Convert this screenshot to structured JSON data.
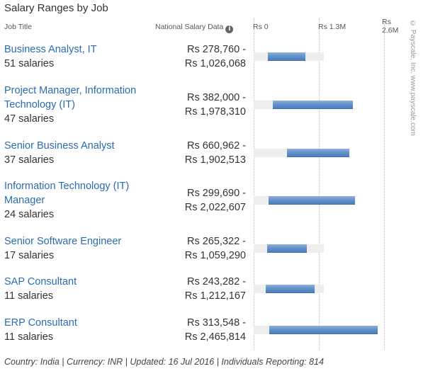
{
  "title": "Salary Ranges by Job",
  "headers": {
    "job_title": "Job Title",
    "salary_data": "National Salary Data",
    "info_icon": "info-icon"
  },
  "watermark": "© Payscale, Inc. www.payscale.com",
  "footer": "Country: India | Currency: INR | Updated: 16 Jul 2016 | Individuals Reporting: 814",
  "chart_data": {
    "type": "bar",
    "orientation": "horizontal-range",
    "xlim": [
      0,
      2600000
    ],
    "ticks": [
      {
        "value": 0,
        "label": "Rs 0"
      },
      {
        "value": 1300000,
        "label": "Rs 1.3M"
      },
      {
        "value": 2600000,
        "label": "Rs\n2.6M"
      }
    ],
    "grid": true,
    "colors": {
      "bar": "#5f8fc8",
      "track": "#eeeeee",
      "link": "#2b6cb0"
    },
    "rows": [
      {
        "job": "Business Analyst, IT",
        "count": "51 salaries",
        "range_low": "Rs 278,760 -",
        "range_high": "Rs 1,026,068",
        "min": 278760,
        "max": 1026068
      },
      {
        "job": "Project Manager, Information Technology (IT)",
        "count": "47 salaries",
        "range_low": "Rs 382,000 -",
        "range_high": "Rs 1,978,310",
        "min": 382000,
        "max": 1978310
      },
      {
        "job": "Senior Business Analyst",
        "count": "37 salaries",
        "range_low": "Rs 660,962 -",
        "range_high": "Rs 1,902,513",
        "min": 660962,
        "max": 1902513
      },
      {
        "job": "Information Technology (IT) Manager",
        "count": "24 salaries",
        "range_low": "Rs 299,690 -",
        "range_high": "Rs 2,022,607",
        "min": 299690,
        "max": 2022607
      },
      {
        "job": "Senior Software Engineer",
        "count": "17 salaries",
        "range_low": "Rs 265,322 -",
        "range_high": "Rs 1,059,290",
        "min": 265322,
        "max": 1059290
      },
      {
        "job": "SAP Consultant",
        "count": "11 salaries",
        "range_low": "Rs 243,282 -",
        "range_high": "Rs 1,212,167",
        "min": 243282,
        "max": 1212167
      },
      {
        "job": "ERP Consultant",
        "count": "11 salaries",
        "range_low": "Rs 313,548 -",
        "range_high": "Rs 2,465,814",
        "min": 313548,
        "max": 2465814
      }
    ]
  }
}
